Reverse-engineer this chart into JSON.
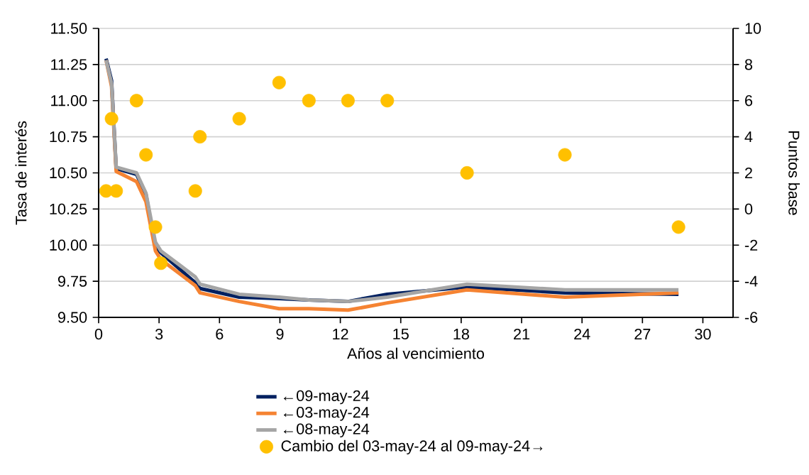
{
  "chart_data": {
    "type": "line",
    "xlabel": "Años al vencimiento",
    "ylabel": "Tasa de interés",
    "y2label": "Puntos base",
    "x": [
      0.37,
      0.64,
      0.87,
      1.88,
      2.35,
      2.82,
      3.09,
      4.8,
      5.03,
      6.98,
      8.96,
      10.44,
      12.38,
      14.33,
      18.29,
      23.15,
      28.79
    ],
    "series": [
      {
        "name": "←09-may-24",
        "color": "#002060",
        "values": [
          11.29,
          11.14,
          10.53,
          10.49,
          10.35,
          9.98,
          null,
          9.74,
          9.7,
          9.64,
          9.63,
          9.62,
          9.61,
          9.66,
          9.71,
          9.67,
          9.66
        ]
      },
      {
        "name": "←03-may-24",
        "color": "#f58332",
        "values": [
          11.28,
          11.1,
          10.51,
          10.44,
          10.3,
          9.96,
          9.9,
          9.72,
          9.67,
          9.61,
          9.56,
          9.56,
          9.55,
          9.6,
          9.69,
          9.64,
          9.67
        ]
      },
      {
        "name": "←08-may-24",
        "color": "#a5a5a5",
        "values": [
          11.28,
          11.12,
          10.54,
          10.5,
          10.36,
          10.02,
          9.96,
          9.78,
          9.73,
          9.66,
          9.64,
          9.62,
          9.61,
          9.64,
          9.73,
          9.69,
          9.69
        ]
      },
      {
        "name": "Cambio del 03-may-24 al 09-may-24→",
        "type": "scatter",
        "axis": "y2",
        "color": "#ffc000",
        "values": [
          1,
          5,
          1,
          6,
          3,
          -1,
          -3,
          1,
          4,
          5,
          7,
          6,
          6,
          6,
          2,
          3,
          -1
        ]
      }
    ],
    "xlim": [
      0,
      31.5
    ],
    "xticks": [
      0,
      3,
      6,
      9,
      12,
      15,
      18,
      21,
      24,
      27,
      30
    ],
    "ylim": [
      9.5,
      11.5
    ],
    "yticks": [
      {
        "value": 9.5,
        "label": "9.50"
      },
      {
        "value": 9.75,
        "label": "9.75"
      },
      {
        "value": 10,
        "label": "10.00"
      },
      {
        "value": 10.25,
        "label": "10.25"
      },
      {
        "value": 10.5,
        "label": "10.50"
      },
      {
        "value": 10.75,
        "label": "10.75"
      },
      {
        "value": 11,
        "label": "11.00"
      },
      {
        "value": 11.25,
        "label": "11.25"
      },
      {
        "value": 11.5,
        "label": "11.50"
      }
    ],
    "y2lim": [
      -6,
      10
    ],
    "y2ticks": [
      -6,
      -4,
      -2,
      0,
      2,
      4,
      6,
      8,
      10
    ],
    "grid": "y",
    "legend": "bottom"
  }
}
